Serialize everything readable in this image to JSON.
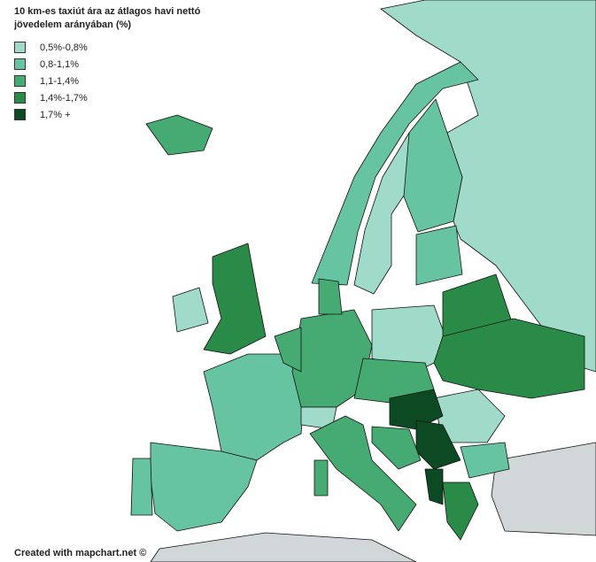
{
  "title": "10 km-es taxiút ára az átlagos havi nettó jövedelem arányában (%)",
  "legend": {
    "items": [
      {
        "label": "0,5%-0,8%",
        "color": "#a0dbca"
      },
      {
        "label": "0,8-1,1%",
        "color": "#66c4a2"
      },
      {
        "label": "1,1-1,4%",
        "color": "#45ab72"
      },
      {
        "label": "1,4%-1,7%",
        "color": "#2a8a48"
      },
      {
        "label": "1,7% +",
        "color": "#0c4a24"
      }
    ]
  },
  "no_data_color": "#d1d6d9",
  "credit": "Created with mapchart.net ©"
}
